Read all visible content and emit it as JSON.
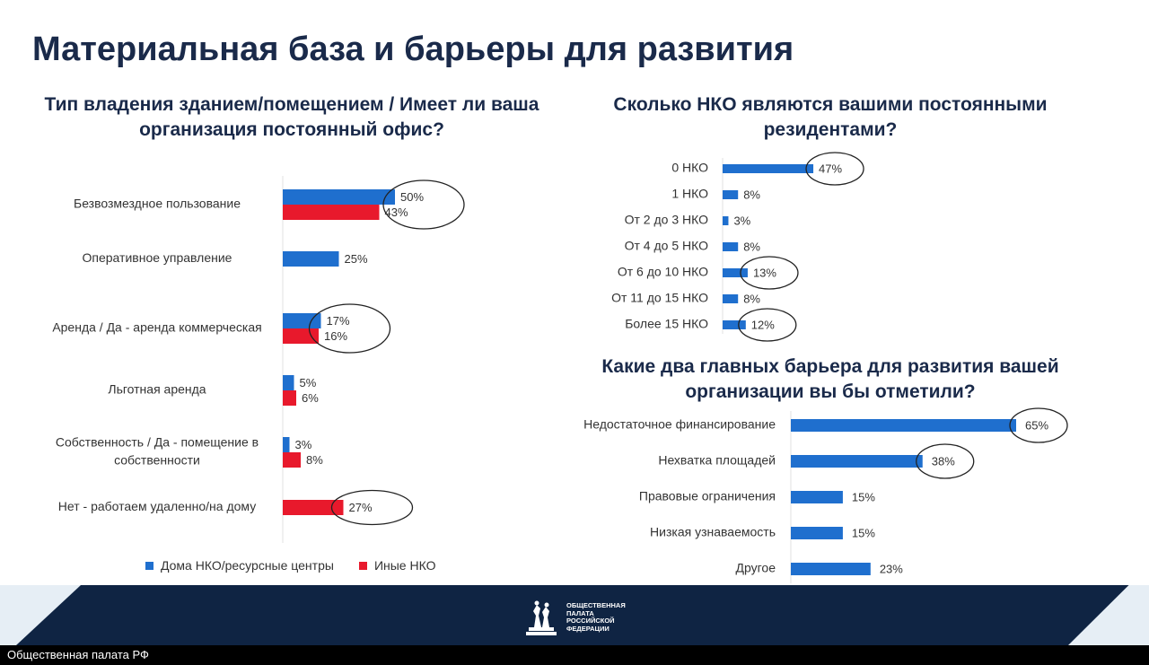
{
  "slide": {
    "title": "Материальная база и барьеры для развития"
  },
  "colors": {
    "blue": "#1f6fce",
    "red": "#e8192c",
    "title": "#1a2a4a",
    "highlight_ring": "#222222"
  },
  "chart_data": [
    {
      "type": "bar",
      "orientation": "horizontal",
      "title": "Тип владения зданием/помещением / Имеет ли ваша организация постоянный офис?",
      "categories": [
        "Безвозмездное пользование",
        "Оперативное управление",
        "Аренда / Да - аренда коммерческая",
        "Льготная аренда",
        "Собственность / Да - помещение в собственности",
        "Нет - работаем удаленно/на дому"
      ],
      "category_lines": [
        [
          "Безвозмездное пользование"
        ],
        [
          "Оперативное управление"
        ],
        [
          "Аренда / Да - аренда коммерческая"
        ],
        [
          "Льготная аренда"
        ],
        [
          "Собственность / Да - помещение в",
          "собственности"
        ],
        [
          "Нет - работаем удаленно/на дому"
        ]
      ],
      "series": [
        {
          "name": "Дома НКО/ресурсные центры",
          "color": "#1f6fce",
          "values": [
            50,
            25,
            17,
            5,
            3,
            null
          ]
        },
        {
          "name": "Иные НКО",
          "color": "#e8192c",
          "values": [
            43,
            null,
            16,
            6,
            8,
            27
          ]
        }
      ],
      "value_suffix": "%",
      "highlighted_categories": [
        0,
        2,
        5
      ],
      "legend": "bottom"
    },
    {
      "type": "bar",
      "orientation": "horizontal",
      "title": "Сколько НКО являются вашими постоянными резидентами?",
      "categories": [
        "0 НКО",
        "1 НКО",
        "От 2 до 3 НКО",
        "От 4 до 5 НКО",
        "От 6 до 10 НКО",
        "От 11 до 15 НКО",
        "Более 15 НКО"
      ],
      "values": [
        47,
        8,
        3,
        8,
        13,
        8,
        12
      ],
      "value_suffix": "%",
      "color": "#1f6fce",
      "highlighted_categories": [
        0,
        4,
        6
      ]
    },
    {
      "type": "bar",
      "orientation": "horizontal",
      "title": "Какие два главных барьера для развития вашей организации вы бы отметили?",
      "categories": [
        "Недостаточное финансирование",
        "Нехватка площадей",
        "Правовые ограничения",
        "Низкая узнаваемость",
        "Другое"
      ],
      "values": [
        65,
        38,
        15,
        15,
        23
      ],
      "value_suffix": "%",
      "color": "#1f6fce",
      "highlighted_categories": [
        0,
        1
      ]
    }
  ],
  "footer": {
    "logo_lines": [
      "Общественная",
      "палата",
      "Российской",
      "Федерации"
    ],
    "caption": "Общественная палата РФ"
  }
}
